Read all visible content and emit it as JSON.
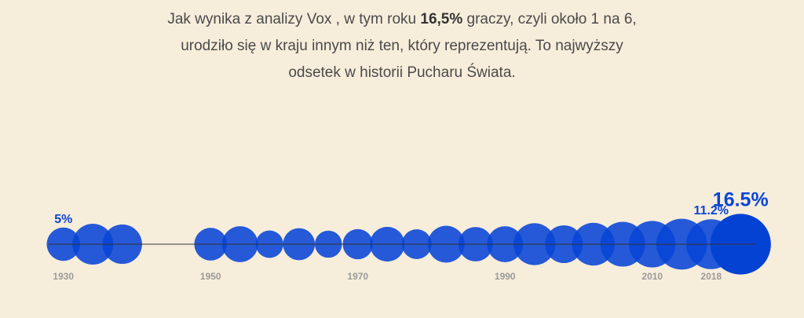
{
  "caption": {
    "part1": "Jak wynika z analizy Vox , w tym roku ",
    "bold": "16,5%",
    "part2": " graczy, czyli około 1 na 6, urodziło się w kraju innym niż ten, który reprezentują. To najwyższy odsetek w historii Pucharu Świata."
  },
  "colors": {
    "bubble": "#0844d6",
    "background": "#f7eddb",
    "axis": "#333333",
    "tick": "#9a9a9a"
  },
  "chart_data": {
    "type": "scatter",
    "encoding": "bubble",
    "x_axis_ticks": [
      "1930",
      "1950",
      "1970",
      "1990",
      "2010",
      "2018"
    ],
    "xlim": [
      1928,
      2024
    ],
    "points": [
      {
        "year": 1930,
        "value": 5.0
      },
      {
        "year": 1934,
        "value": 7.5
      },
      {
        "year": 1938,
        "value": 7.0
      },
      {
        "year": 1950,
        "value": 4.8
      },
      {
        "year": 1954,
        "value": 5.8
      },
      {
        "year": 1958,
        "value": 3.4
      },
      {
        "year": 1962,
        "value": 4.6
      },
      {
        "year": 1966,
        "value": 3.3
      },
      {
        "year": 1970,
        "value": 4.1
      },
      {
        "year": 1974,
        "value": 5.4
      },
      {
        "year": 1978,
        "value": 4.0
      },
      {
        "year": 1982,
        "value": 6.1
      },
      {
        "year": 1986,
        "value": 5.3
      },
      {
        "year": 1990,
        "value": 5.8
      },
      {
        "year": 1994,
        "value": 7.9
      },
      {
        "year": 1998,
        "value": 6.4
      },
      {
        "year": 2002,
        "value": 8.2
      },
      {
        "year": 2006,
        "value": 9.0
      },
      {
        "year": 2010,
        "value": 9.7
      },
      {
        "year": 2014,
        "value": 11.6
      },
      {
        "year": 2018,
        "value": 11.2
      },
      {
        "year": 2022,
        "value": 16.5
      }
    ],
    "labels": [
      {
        "year": 1930,
        "text": "5%"
      },
      {
        "year": 2018,
        "text": "11.2%"
      },
      {
        "year": 2022,
        "text": "16.5%"
      }
    ]
  }
}
